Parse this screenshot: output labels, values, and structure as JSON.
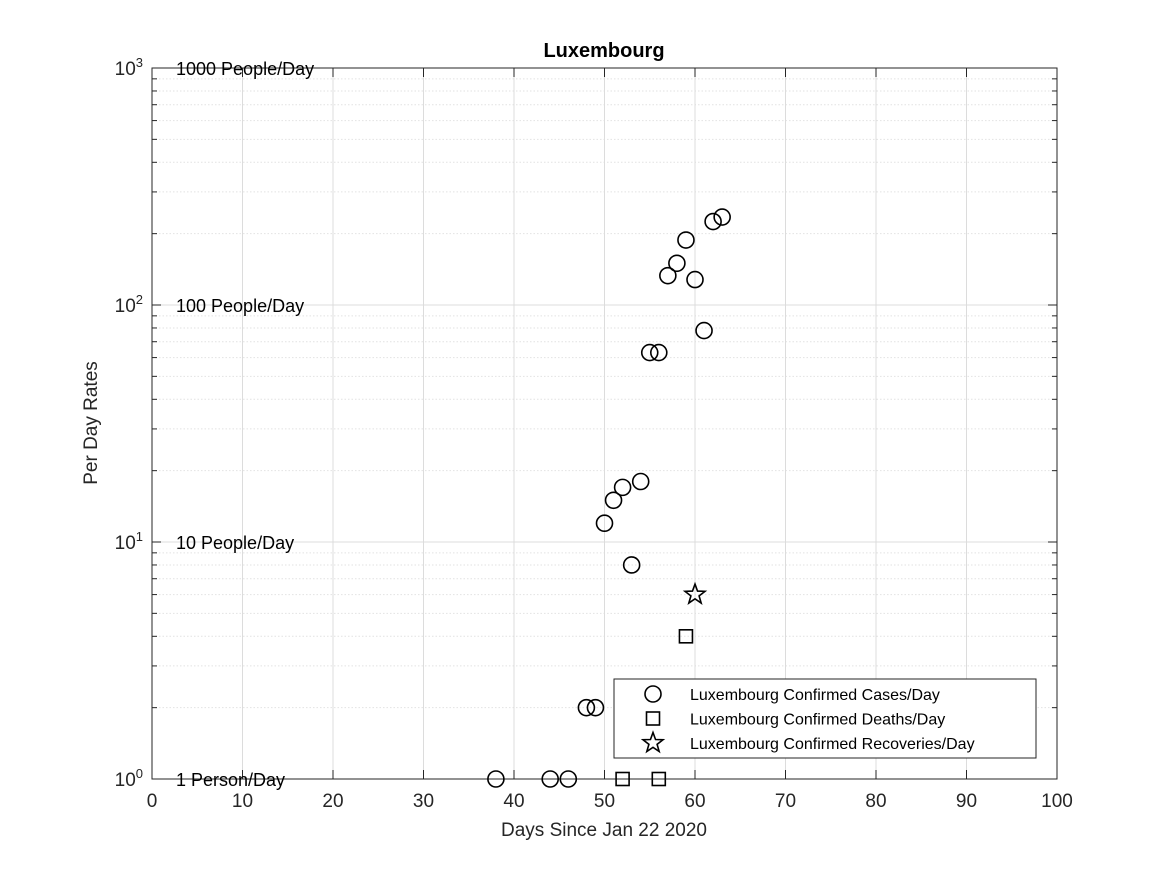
{
  "chart_data": {
    "type": "scatter",
    "title": "Luxembourg",
    "xlabel": "Days Since Jan 22 2020",
    "ylabel": "Per Day Rates",
    "xlim": [
      0,
      100
    ],
    "ylim": [
      1,
      1000
    ],
    "yscale": "log",
    "grid": true,
    "minor_grid": true,
    "x_ticks": [
      0,
      10,
      20,
      30,
      40,
      50,
      60,
      70,
      80,
      90,
      100
    ],
    "y_ticks": [
      {
        "value": 1,
        "base": "10",
        "exp": "0"
      },
      {
        "value": 10,
        "base": "10",
        "exp": "1"
      },
      {
        "value": 100,
        "base": "10",
        "exp": "2"
      },
      {
        "value": 1000,
        "base": "10",
        "exp": "3"
      }
    ],
    "reference_labels": [
      {
        "value": 1000,
        "text": "1000 People/Day"
      },
      {
        "value": 100,
        "text": "100 People/Day"
      },
      {
        "value": 10,
        "text": "10 People/Day"
      },
      {
        "value": 1,
        "text": "1 Person/Day"
      }
    ],
    "legend_position": "bottom-right",
    "series": [
      {
        "name": "Luxembourg Confirmed Cases/Day",
        "marker": "circle",
        "color": "#000000",
        "points": [
          [
            38,
            1
          ],
          [
            44,
            1
          ],
          [
            46,
            1
          ],
          [
            48,
            2
          ],
          [
            49,
            2
          ],
          [
            50,
            12
          ],
          [
            51,
            15
          ],
          [
            52,
            17
          ],
          [
            53,
            8
          ],
          [
            54,
            18
          ],
          [
            55,
            63
          ],
          [
            56,
            63
          ],
          [
            57,
            133
          ],
          [
            58,
            150
          ],
          [
            59,
            188
          ],
          [
            60,
            128
          ],
          [
            61,
            78
          ],
          [
            62,
            225
          ],
          [
            63,
            235
          ]
        ]
      },
      {
        "name": "Luxembourg Confirmed Deaths/Day",
        "marker": "square",
        "color": "#000000",
        "points": [
          [
            52,
            1
          ],
          [
            56,
            1
          ],
          [
            59,
            4
          ]
        ]
      },
      {
        "name": "Luxembourg Confirmed Recoveries/Day",
        "marker": "star",
        "color": "#000000",
        "points": [
          [
            60,
            6
          ]
        ]
      }
    ]
  }
}
